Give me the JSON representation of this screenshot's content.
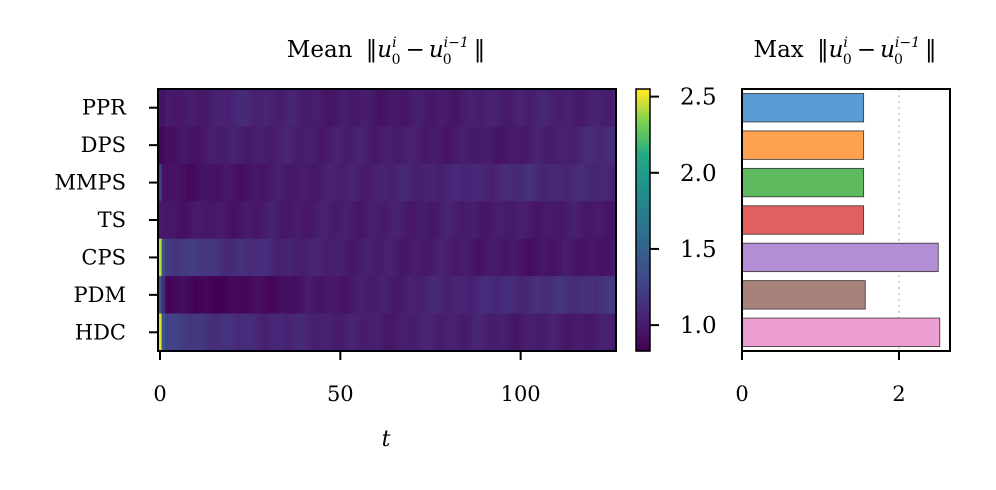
{
  "chart_data": [
    {
      "type": "heatmap",
      "title": {
        "prefix": "Mean",
        "norm_open": "‖",
        "var1": "u",
        "sub1": "0",
        "sup1": "i",
        "minus": "−",
        "var2": "u",
        "sub2": "0",
        "sup2": "i−1",
        "norm_close": "‖"
      },
      "xlabel": "t",
      "x_ticks": [
        0,
        50,
        100
      ],
      "xlim": [
        0,
        127
      ],
      "rows": [
        "PPR",
        "DPS",
        "MMPS",
        "TS",
        "CPS",
        "PDM",
        "HDC"
      ],
      "colormap": "viridis",
      "vmin": 0.83,
      "vmax": 2.55,
      "row_profiles": [
        {
          "name": "PPR",
          "first_values": [
            0.95,
            0.95
          ],
          "anchors_t": [
            0,
            10,
            25,
            40,
            60,
            80,
            100,
            127
          ],
          "anchors_v": [
            0.95,
            1.0,
            1.07,
            1.0,
            0.97,
            0.99,
            1.03,
            1.01
          ]
        },
        {
          "name": "DPS",
          "first_values": [
            0.85,
            0.9
          ],
          "anchors_t": [
            0,
            10,
            25,
            40,
            60,
            80,
            100,
            127
          ],
          "anchors_v": [
            0.9,
            0.98,
            1.02,
            1.01,
            1.01,
            0.99,
            0.98,
            1.1
          ]
        },
        {
          "name": "MMPS",
          "first_values": [
            1.25,
            0.95
          ],
          "anchors_t": [
            0,
            10,
            25,
            40,
            60,
            80,
            100,
            127
          ],
          "anchors_v": [
            0.95,
            0.92,
            0.96,
            1.0,
            1.03,
            1.05,
            1.09,
            1.06
          ]
        },
        {
          "name": "TS",
          "first_values": [
            1.0,
            0.97
          ],
          "anchors_t": [
            0,
            10,
            25,
            40,
            60,
            80,
            100,
            127
          ],
          "anchors_v": [
            0.97,
            0.96,
            0.98,
            1.0,
            1.0,
            1.0,
            0.99,
            0.98
          ]
        },
        {
          "name": "CPS",
          "first_values": [
            2.45,
            1.35,
            1.2
          ],
          "anchors_t": [
            0,
            10,
            25,
            40,
            60,
            80,
            100,
            127
          ],
          "anchors_v": [
            1.2,
            1.18,
            1.1,
            1.03,
            1.0,
            1.0,
            0.95,
            0.97
          ]
        },
        {
          "name": "PDM",
          "first_values": [
            1.45,
            1.1
          ],
          "anchors_t": [
            0,
            10,
            25,
            40,
            60,
            80,
            100,
            127
          ],
          "anchors_v": [
            0.9,
            0.85,
            0.87,
            0.95,
            1.0,
            1.05,
            1.1,
            1.16
          ]
        },
        {
          "name": "HDC",
          "first_values": [
            2.5,
            1.4,
            1.25
          ],
          "anchors_t": [
            0,
            10,
            25,
            40,
            60,
            80,
            100,
            127
          ],
          "anchors_v": [
            1.25,
            1.18,
            1.08,
            1.05,
            1.0,
            1.03,
            1.0,
            1.0
          ]
        }
      ],
      "colorbar": {
        "ticks": [
          1.0,
          1.5,
          2.0,
          2.5
        ],
        "range": [
          0.83,
          2.55
        ]
      }
    },
    {
      "type": "bar",
      "orientation": "horizontal",
      "title": {
        "prefix": "Max",
        "norm_open": "‖",
        "var1": "u",
        "sub1": "0",
        "sup1": "i",
        "minus": "−",
        "var2": "u",
        "sub2": "0",
        "sup2": "i−1",
        "norm_close": "‖"
      },
      "categories": [
        "PPR",
        "DPS",
        "MMPS",
        "TS",
        "CPS",
        "PDM",
        "HDC"
      ],
      "values": [
        1.55,
        1.55,
        1.55,
        1.55,
        2.5,
        1.57,
        2.52
      ],
      "colors": [
        "#5b9bd5",
        "#ffa24f",
        "#5fba5f",
        "#e06060",
        "#b48ed4",
        "#a9817b",
        "#ec9ed0"
      ],
      "x_ticks": [
        0,
        2
      ],
      "xlim": [
        0,
        2.65
      ],
      "reference_line_x": 2.0
    }
  ]
}
